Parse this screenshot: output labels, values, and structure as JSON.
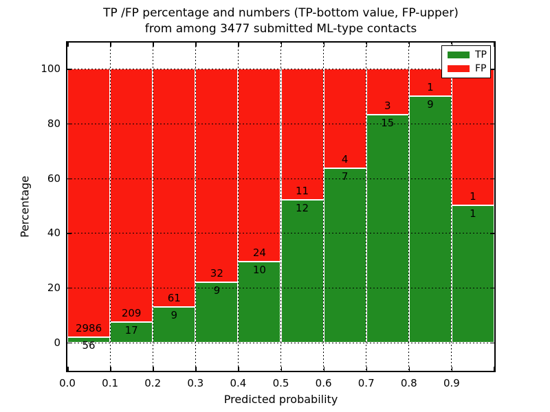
{
  "title": {
    "line1": "TP /FP percentage and numbers (TP-bottom value, FP-upper)",
    "line2": "from among 3477 submitted ML-type contacts"
  },
  "axes": {
    "xlabel": "Predicted probability",
    "ylabel": "Percentage",
    "x_tick_labels": [
      "0.0",
      "0.1",
      "0.2",
      "0.3",
      "0.4",
      "0.5",
      "0.6",
      "0.7",
      "0.8",
      "0.9"
    ],
    "y_tick_labels": [
      "0",
      "20",
      "40",
      "60",
      "80",
      "100"
    ]
  },
  "legend": {
    "items": [
      {
        "label": "TP",
        "color": "#228b22"
      },
      {
        "label": "FP",
        "color": "#fa1b10"
      }
    ]
  },
  "chart_data": {
    "type": "bar",
    "stacked": true,
    "normalized": "each bar totals 100%",
    "title": "TP /FP percentage and numbers (TP-bottom value, FP-upper) from among 3477 submitted ML-type contacts",
    "xlabel": "Predicted probability",
    "ylabel": "Percentage",
    "total_contacts": 3477,
    "bins": [
      "0.0-0.1",
      "0.1-0.2",
      "0.2-0.3",
      "0.3-0.4",
      "0.4-0.5",
      "0.5-0.6",
      "0.6-0.7",
      "0.7-0.8",
      "0.8-0.9",
      "0.9-1.0"
    ],
    "series": [
      {
        "name": "TP",
        "color": "#228b22",
        "counts": [
          56,
          17,
          9,
          9,
          10,
          12,
          7,
          15,
          9,
          1
        ]
      },
      {
        "name": "FP",
        "color": "#fa1b10",
        "counts": [
          2986,
          209,
          61,
          32,
          24,
          11,
          4,
          3,
          1,
          1
        ]
      }
    ],
    "tp_percent": [
      1.84,
      7.52,
      12.86,
      21.95,
      29.41,
      52.17,
      63.64,
      83.33,
      90.0,
      50.0
    ],
    "x_ticks": [
      0.0,
      0.1,
      0.2,
      0.3,
      0.4,
      0.5,
      0.6,
      0.7,
      0.8,
      0.9
    ],
    "y_ticks": [
      0,
      20,
      40,
      60,
      80,
      100
    ],
    "xlim": [
      0,
      1
    ],
    "ylim": [
      -10.4,
      109.6
    ],
    "grid": true,
    "grid_style": "dotted",
    "legend_position": "upper right"
  }
}
